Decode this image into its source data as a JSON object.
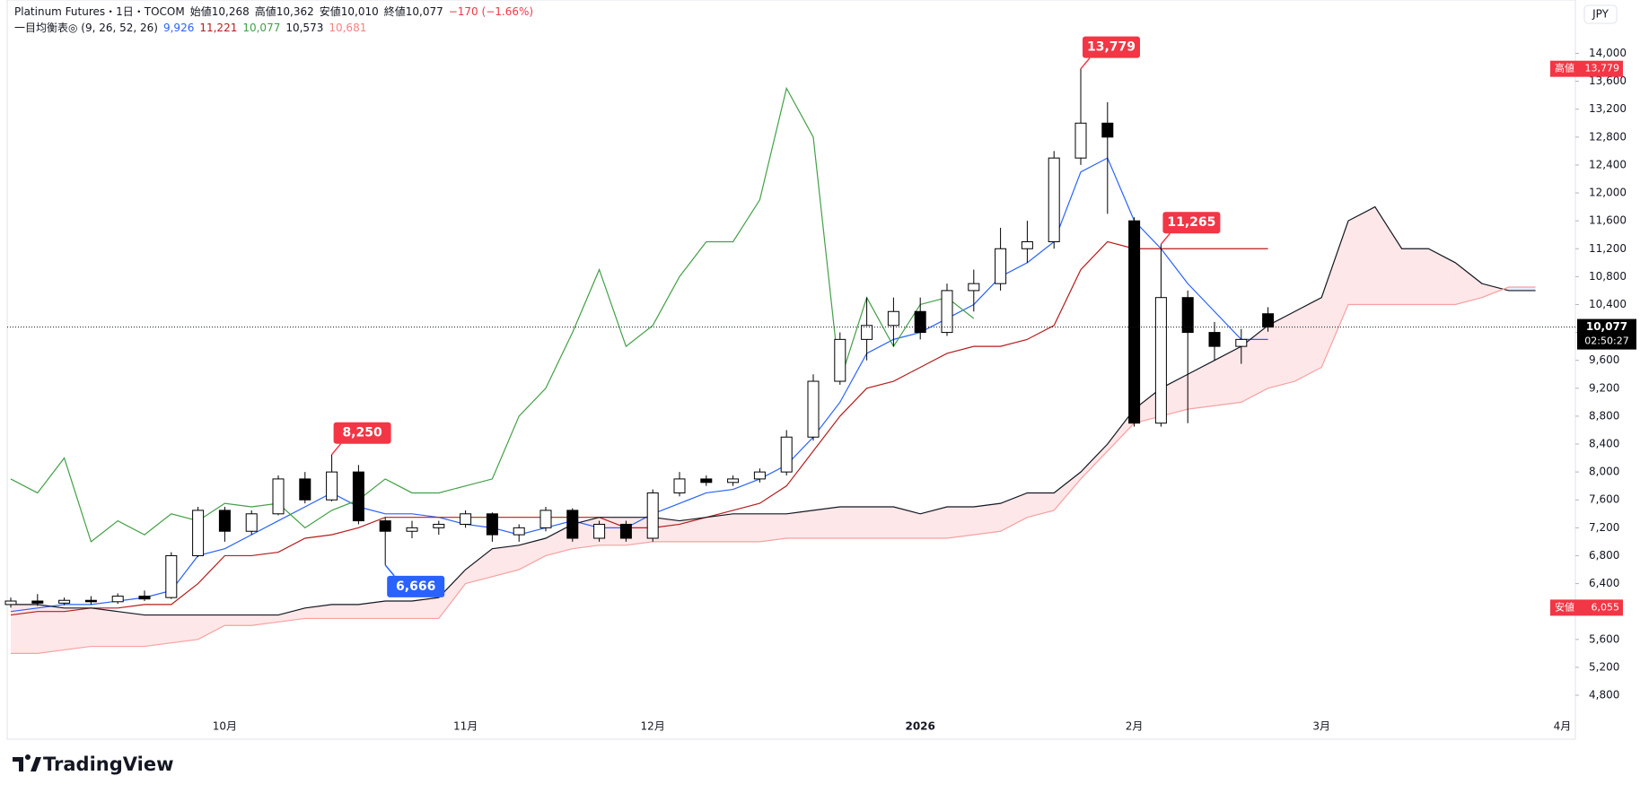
{
  "header": {
    "symbol": "Platinum Futures・1日・TOCOM",
    "open": "始値10,268",
    "high": "高値10,362",
    "low": "安値10,010",
    "close": "終値10,077",
    "change": "−170 (−1.66%)",
    "change_color": "#f23645",
    "indicator": "一目均衡表◎ (9, 26, 52, 26)",
    "indicator_values": [
      {
        "text": "9,926",
        "color": "#2962ff"
      },
      {
        "text": "11,221",
        "color": "#b71c1c"
      },
      {
        "text": "10,077",
        "color": "#43a047"
      },
      {
        "text": "10,573",
        "color": "#131722"
      },
      {
        "text": "10,681",
        "color": "#f7827f"
      }
    ]
  },
  "currency": "JPY",
  "brand": "TradingView",
  "chart_data": {
    "type": "candlestick",
    "categories": [
      null,
      null,
      null,
      null,
      null,
      null,
      null,
      null,
      "10月",
      null,
      null,
      null,
      null,
      null,
      null,
      null,
      null,
      "11月",
      null,
      null,
      null,
      null,
      null,
      null,
      "12月",
      null,
      null,
      null,
      null,
      null,
      null,
      null,
      null,
      null,
      "2026",
      null,
      null,
      null,
      null,
      null,
      null,
      null,
      "2月",
      null,
      null,
      null,
      null,
      null,
      null,
      "3月",
      null,
      null,
      null,
      null,
      null,
      null,
      null,
      null,
      "4月"
    ],
    "candles": [
      [
        6100,
        6200,
        6055,
        6150
      ],
      [
        6150,
        6250,
        6080,
        6120
      ],
      [
        6120,
        6200,
        6090,
        6160
      ],
      [
        6160,
        6220,
        6100,
        6140
      ],
      [
        6140,
        6260,
        6110,
        6220
      ],
      [
        6220,
        6300,
        6150,
        6180
      ],
      [
        6200,
        6850,
        6180,
        6800
      ],
      [
        6800,
        7500,
        6780,
        7450
      ],
      [
        7450,
        7500,
        7000,
        7150
      ],
      [
        7150,
        7450,
        7100,
        7400
      ],
      [
        7400,
        7950,
        7380,
        7900
      ],
      [
        7900,
        8000,
        7550,
        7600
      ],
      [
        7600,
        8250,
        7580,
        8000
      ],
      [
        8000,
        8100,
        7250,
        7300
      ],
      [
        7300,
        7350,
        6666,
        7150
      ],
      [
        7150,
        7300,
        7050,
        7200
      ],
      [
        7200,
        7300,
        7100,
        7250
      ],
      [
        7250,
        7450,
        7200,
        7400
      ],
      [
        7400,
        7420,
        7000,
        7100
      ],
      [
        7100,
        7250,
        7000,
        7200
      ],
      [
        7200,
        7500,
        7150,
        7450
      ],
      [
        7450,
        7480,
        7000,
        7050
      ],
      [
        7050,
        7300,
        7000,
        7250
      ],
      [
        7250,
        7300,
        7000,
        7050
      ],
      [
        7050,
        7750,
        7000,
        7700
      ],
      [
        7700,
        8000,
        7650,
        7900
      ],
      [
        7900,
        7950,
        7800,
        7850
      ],
      [
        7850,
        7950,
        7800,
        7900
      ],
      [
        7900,
        8050,
        7850,
        8000
      ],
      [
        8000,
        8600,
        7950,
        8500
      ],
      [
        8500,
        9400,
        8450,
        9300
      ],
      [
        9300,
        10000,
        9250,
        9900
      ],
      [
        9900,
        10500,
        9600,
        10100
      ],
      [
        10100,
        10500,
        9800,
        10300
      ],
      [
        10300,
        10500,
        9900,
        10000
      ],
      [
        10000,
        10700,
        9950,
        10600
      ],
      [
        10600,
        10900,
        10300,
        10700
      ],
      [
        10700,
        11500,
        10600,
        11200
      ],
      [
        11200,
        11600,
        11000,
        11300
      ],
      [
        11300,
        12600,
        11200,
        12500
      ],
      [
        12500,
        13779,
        12400,
        13000
      ],
      [
        13000,
        13300,
        11700,
        12800
      ],
      [
        11600,
        11650,
        8650,
        8700
      ],
      [
        8700,
        11265,
        8650,
        10500
      ],
      [
        10500,
        10600,
        8700,
        10000
      ],
      [
        10000,
        10150,
        9600,
        9800
      ],
      [
        9800,
        10050,
        9550,
        9900
      ],
      [
        10268,
        10362,
        10010,
        10077
      ],
      null,
      null,
      null,
      null,
      null,
      null,
      null,
      null,
      null,
      null,
      null
    ],
    "up_color": "#ffffff",
    "down_color": "#000000",
    "wick_color": "#000000",
    "series": [
      {
        "color": "#2962ff",
        "values": [
          6000,
          6050,
          6100,
          6100,
          6150,
          6200,
          6300,
          6800,
          6900,
          7100,
          7300,
          7500,
          7700,
          7500,
          7400,
          7400,
          7350,
          7250,
          7200,
          7100,
          7200,
          7300,
          7200,
          7200,
          7400,
          7550,
          7700,
          7750,
          7900,
          8100,
          8500,
          9000,
          9700,
          9900,
          10000,
          10200,
          10400,
          10800,
          11000,
          11300,
          12300,
          12500,
          11600,
          11200,
          10700,
          10300,
          9900,
          9900,
          null,
          null,
          null,
          null,
          null,
          null,
          null,
          null,
          null,
          null,
          null
        ]
      },
      {
        "color": "#b71c1c",
        "values": [
          5950,
          6000,
          6000,
          6050,
          6050,
          6100,
          6100,
          6400,
          6800,
          6800,
          6850,
          7050,
          7100,
          7200,
          7350,
          7350,
          7350,
          7350,
          7350,
          7350,
          7350,
          7350,
          7350,
          7200,
          7200,
          7250,
          7350,
          7450,
          7550,
          7800,
          8300,
          8800,
          9200,
          9300,
          9500,
          9700,
          9800,
          9800,
          9900,
          10100,
          10900,
          11300,
          11200,
          11200,
          11200,
          11200,
          11200,
          11200,
          null,
          null,
          null,
          null,
          null,
          null,
          null,
          null,
          null,
          null,
          null
        ]
      },
      {
        "color": "#43a047",
        "values": [
          7900,
          7700,
          8200,
          7000,
          7300,
          7100,
          7400,
          7300,
          7550,
          7500,
          7550,
          7200,
          7450,
          7600,
          7900,
          7700,
          7700,
          7800,
          7900,
          8800,
          9200,
          10000,
          10900,
          9800,
          10100,
          10800,
          11300,
          11300,
          11900,
          13500,
          12800,
          9300,
          10500,
          9800,
          10400,
          10500,
          10200,
          null,
          null,
          null,
          null,
          null,
          null,
          null,
          null,
          null,
          null,
          null,
          null,
          null,
          null,
          null,
          null,
          null,
          null,
          null,
          null,
          null,
          null
        ]
      },
      {
        "color": "#131722",
        "values": [
          6100,
          6100,
          6050,
          6050,
          6000,
          5950,
          5950,
          5950,
          5950,
          5950,
          5950,
          6050,
          6100,
          6100,
          6150,
          6150,
          6200,
          6600,
          6900,
          6950,
          7050,
          7250,
          7350,
          7350,
          7350,
          7300,
          7350,
          7400,
          7400,
          7400,
          7450,
          7500,
          7500,
          7500,
          7400,
          7500,
          7500,
          7550,
          7700,
          7700,
          8000,
          8400,
          8900,
          9200,
          9400,
          9600,
          9800,
          10100,
          10300,
          10500,
          11600,
          11800,
          11200,
          11200,
          11000,
          10700,
          10600,
          10600,
          null
        ]
      },
      {
        "color": "#f7a1a1",
        "values": [
          5400,
          5400,
          5450,
          5500,
          5500,
          5500,
          5550,
          5600,
          5800,
          5800,
          5850,
          5900,
          5900,
          5900,
          5900,
          5900,
          5900,
          6400,
          6500,
          6600,
          6800,
          6900,
          6950,
          6950,
          7000,
          7000,
          7000,
          7000,
          7000,
          7050,
          7050,
          7050,
          7050,
          7050,
          7050,
          7050,
          7100,
          7150,
          7350,
          7450,
          7900,
          8300,
          8700,
          8800,
          8900,
          8950,
          9000,
          9200,
          9300,
          9500,
          10400,
          10400,
          10400,
          10400,
          10400,
          10500,
          10650,
          10650,
          null
        ]
      }
    ],
    "cloud_colors": [
      "rgba(242,54,69,0.12)",
      "rgba(41,98,255,0.12)"
    ],
    "ylim": [
      4170,
      14765
    ],
    "yticks": [
      {
        "value": 4800,
        "label": "4,800"
      },
      {
        "value": 5200,
        "label": "5,200"
      },
      {
        "value": 5600,
        "label": "5,600"
      },
      {
        "value": 6000,
        "label": "6,000"
      },
      {
        "value": 6400,
        "label": "6,400"
      },
      {
        "value": 6800,
        "label": "6,800"
      },
      {
        "value": 7200,
        "label": "7,200"
      },
      {
        "value": 7600,
        "label": "7,600"
      },
      {
        "value": 8000,
        "label": "8,000"
      },
      {
        "value": 8400,
        "label": "8,400"
      },
      {
        "value": 8800,
        "label": "8,800"
      },
      {
        "value": 9200,
        "label": "9,200"
      },
      {
        "value": 9600,
        "label": "9,600"
      },
      {
        "value": 10000,
        "label": "10,000"
      },
      {
        "value": 10400,
        "label": "10,400"
      },
      {
        "value": 10800,
        "label": "10,800"
      },
      {
        "value": 11200,
        "label": "11,200"
      },
      {
        "value": 11600,
        "label": "11,600"
      },
      {
        "value": 12000,
        "label": "12,000"
      },
      {
        "value": 12400,
        "label": "12,400"
      },
      {
        "value": 12800,
        "label": "12,800"
      },
      {
        "value": 13200,
        "label": "13,200"
      },
      {
        "value": 13600,
        "label": "13,600"
      },
      {
        "value": 14000,
        "label": "14,000"
      }
    ],
    "grid": false,
    "markers": [
      {
        "value": 13779,
        "label": "13,779",
        "kind": "high",
        "color": "#f23645"
      },
      {
        "value": 11265,
        "label": "11,265",
        "kind": "high",
        "color": "#f23645"
      },
      {
        "value": 8250,
        "label": "8,250",
        "kind": "high",
        "color": "#f23645"
      },
      {
        "value": 6666,
        "label": "6,666",
        "kind": "low",
        "color": "#2962ff"
      }
    ],
    "range_labels": [
      {
        "label": "高値",
        "value": 13779,
        "value_label": "13,779",
        "color": "#f23645"
      },
      {
        "label": "安値",
        "value": 6055,
        "value_label": "6,055",
        "color": "#f23645"
      }
    ],
    "last": {
      "value": 10077,
      "label": "10,077",
      "countdown": "02:50:27",
      "color": "#000000"
    }
  }
}
